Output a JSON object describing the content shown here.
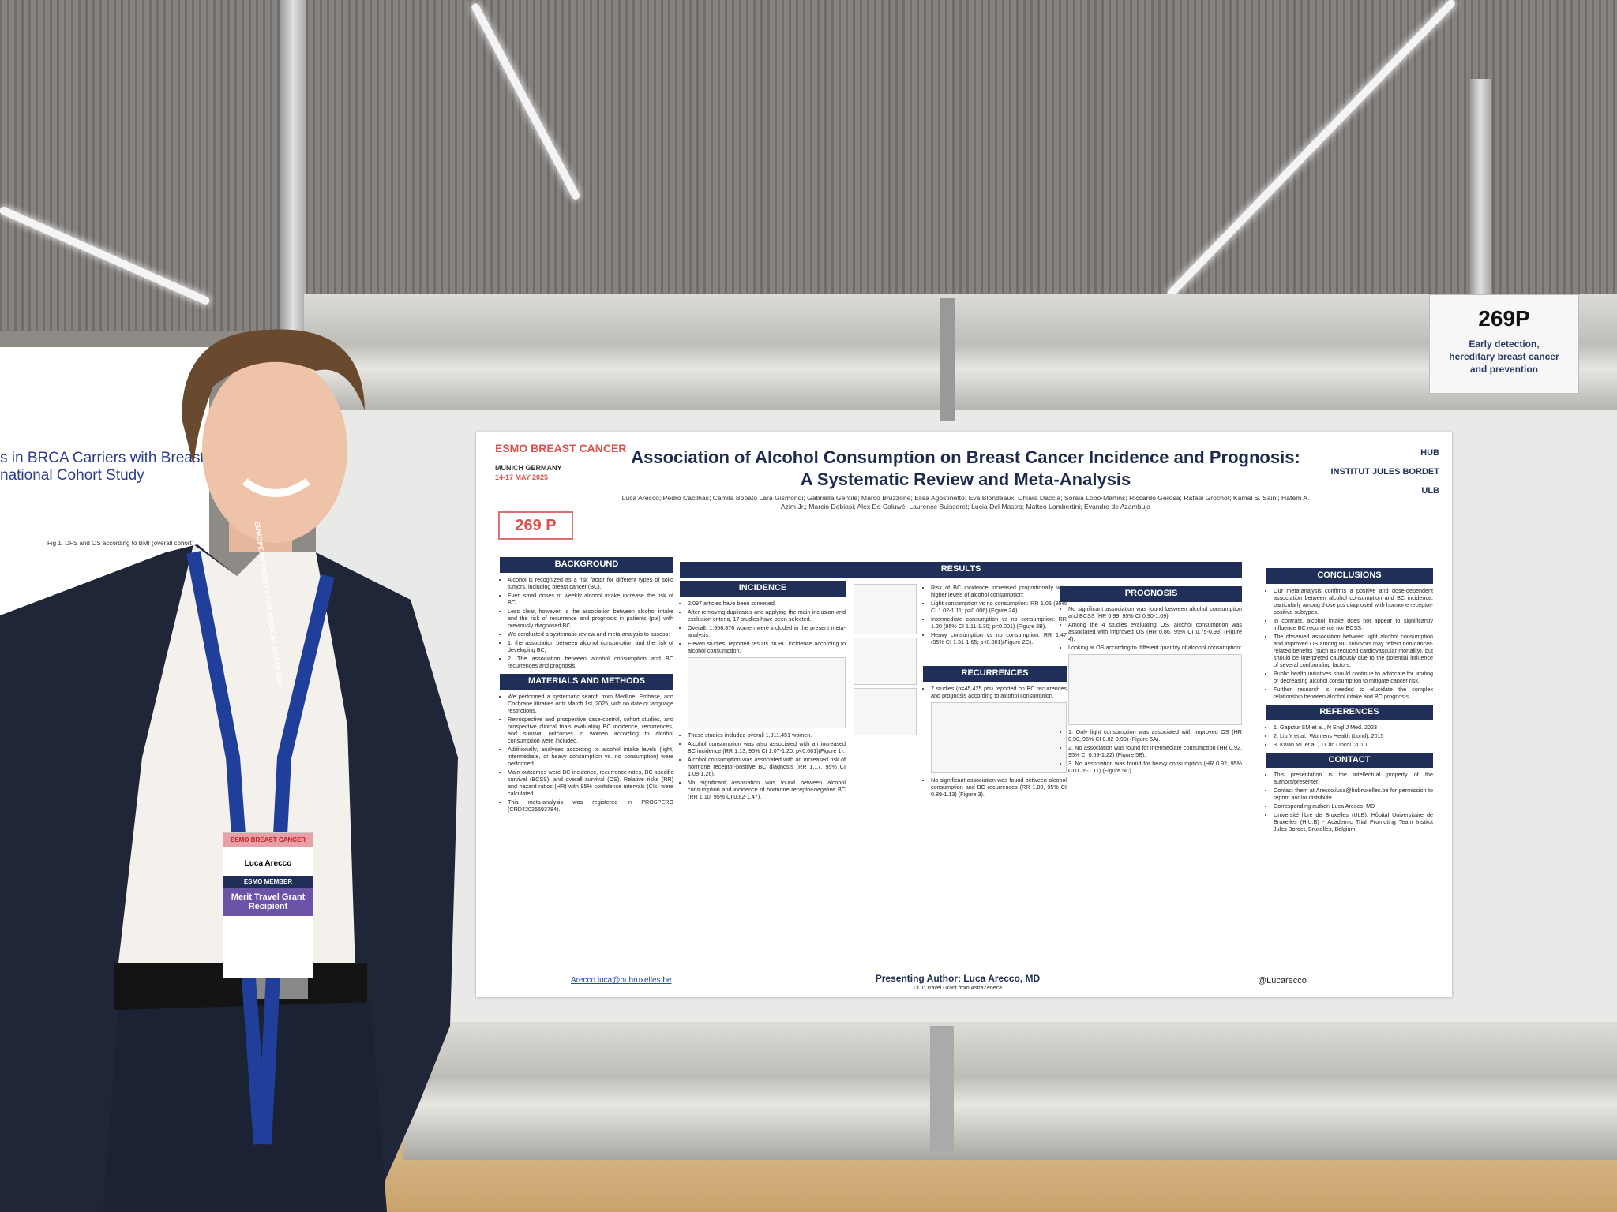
{
  "sign": {
    "code": "269P",
    "topic": "Early detection, hereditary breast cancer and prevention"
  },
  "left_poster": {
    "title": "s in BRCA Carriers with Breast Cancer",
    "subtitle": "national Cohort Study",
    "figure": "Fig 1. DFS and OS according to BMI (overall cohort)"
  },
  "badge": {
    "event": "ESMO BREAST CANCER",
    "name": "Luca Arecco",
    "member": "ESMO MEMBER",
    "grant": "Merit Travel Grant Recipient"
  },
  "lanyard": "EUROPEAN SOCIETY FOR MEDICAL ONCOLOGY",
  "poster": {
    "conference": "ESMO BREAST CANCER",
    "location": "MUNICH GERMANY",
    "dates": "14-17 MAY 2025",
    "number": "269 P",
    "title": "Association of Alcohol Consumption on Breast Cancer Incidence and Prognosis:",
    "subtitle": "A Systematic Review and Meta-Analysis",
    "authors": "Luca Arecco; Pedro Cacilhas; Camila Bobato Lara Gismondi; Gabriella Gentile; Marco Bruzzone; Elisa Agostinetto; Eva Blondeaux; Chiara Daccia; Soraia Lobo-Martins; Riccardo Gerosa; Rafael Grochot; Kamal S. Saini; Hatem A. Azim Jr.; Marcio Debiasi; Alex De Caluwé; Laurence Buisseret; Lucia Del Mastro; Matteo Lambertini; Evandro de Azambuja",
    "logos": [
      "HUB",
      "INSTITUT JULES BORDET",
      "ULB"
    ],
    "background": {
      "heading": "BACKGROUND",
      "items": [
        "Alcohol is recognized as a risk factor for different types of solid tumors, including breast cancer (BC).",
        "Even small doses of weekly alcohol intake increase the risk of BC.",
        "Less clear, however, is the association between alcohol intake and the risk of recurrence and prognosis in patients (pts) with previously diagnosed BC.",
        "We conducted a systematic review and meta-analysis to assess:",
        "1. the association between alcohol consumption and the risk of developing BC;",
        "2. The association between alcohol consumption and BC recurrences and prognosis."
      ]
    },
    "methods": {
      "heading": "MATERIALS AND METHODS",
      "items": [
        "We performed a systematic search from Medline, Embase, and Cochrane libraries until March 1st, 2025, with no date or language restrictions.",
        "Retrospective and prospective case-control, cohort studies, and prospective clinical trials evaluating BC incidence, recurrences, and survival outcomes in women according to alcohol consumption were included.",
        "Additionally, analyses according to alcohol intake levels (light, intermediate, or heavy consumption vs. no consumption) were performed.",
        "Main outcomes were BC incidence, recurrence rates, BC-specific survival (BCSS), and overall survival (OS). Relative risks (RR) and hazard ratios (HR) with 95% confidence intervals (CIs) were calculated.",
        "This meta-analysis was registered in PROSPERO (CRD42025593784)."
      ]
    },
    "results_heading": "RESULTS",
    "incidence": {
      "heading": "INCIDENCE",
      "items": [
        "2,097 articles have been screened.",
        "After removing duplicates and applying the main inclusion and exclusion criteria, 17 studies have been selected.",
        "Overall, 1,956,876 women were included in the present meta-analysis.",
        "Eleven studies, reported results on BC incidence according to alcohol consumption.",
        "These studies included overall 1,911,451 women.",
        "Alcohol consumption was also associated with an increased BC incidence (RR 1.13, 95% CI 1.07-1.20; p<0.001)(Figure 1).",
        "Alcohol consumption was associated with an increased risk of hormone receptor-positive BC diagnosis (RR 1.17, 95% CI 1.08-1.26).",
        "No significant association was found between alcohol consumption and incidence of hormone receptor-negative BC (RR 1.10, 95% CI 0.82-1.47)."
      ]
    },
    "levels": {
      "items": [
        "Risk of BC incidence increased proportionally with higher levels of alcohol consumption:",
        "Light consumption vs no consumption: RR 1.06 (95% CI 1.02-1.11; p=0.006) (Figure 2A).",
        "Intermediate consumption vs no consumption: RR 1.20 (95% CI 1.11-1.30; p<0.001) (Figure 2B).",
        "Heavy consumption vs no consumption: RR 1.47 (95% CI 1.31-1.65; p<0.001)(Figure 2C)."
      ]
    },
    "recurrences": {
      "heading": "RECURRENCES",
      "items": [
        "7 studies (n=45,425 pts) reported on BC recurrences and prognosis according to alcohol consumption.",
        "No significant association was found between alcohol consumption and BC recurrences (RR 1.00, 95% CI 0.89-1.13) (Figure 3)."
      ]
    },
    "prognosis": {
      "heading": "PROGNOSIS",
      "items": [
        "No significant association was found between alcohol consumption and BCSS (HR 0.99, 95% CI 0.90-1.09).",
        "Among the 4 studies evaluating OS, alcohol consumption was associated with improved OS (HR 0.86, 95% CI 0.75-0.99) (Figure 4).",
        "Looking at OS according to different quantity of alcohol consumption:",
        "1. Only light consumption was associated with improved OS (HR 0.90, 95% CI 0.82-0.99) (Figure 5A).",
        "2. No association was found for intermediate consumption (HR 0.92, 95% CI 0.69-1.22) (Figure 5B).",
        "3. No association was found for heavy consumption (HR 0.92, 95% CI 0.76-1.11) (Figure 5C)."
      ]
    },
    "conclusions": {
      "heading": "CONCLUSIONS",
      "items": [
        "Our meta-analysis confirms a positive and dose-dependent association between alcohol consumption and BC incidence, particularly among those pts diagnosed with hormone receptor-positive subtypes.",
        "In contrast, alcohol intake does not appear to significantly influence BC recurrence nor BCSS.",
        "The observed association between light alcohol consumption and improved OS among BC survivors may reflect non-cancer-related benefits (such as reduced cardiovascular mortality), but should be interpreted cautiously due to the potential influence of several confounding factors.",
        "Public health initiatives should continue to advocate for limiting or decreasing alcohol consumption to mitigate cancer risk.",
        "Further research is needed to elucidate the complex relationship between alcohol intake and BC prognosis."
      ]
    },
    "references": {
      "heading": "REFERENCES",
      "items": [
        "1. Gapstur SM et al., N Engl J Med. 2023",
        "2. Liu Y et al., Womens Health (Lond). 2015",
        "3. Kwan ML et al., J Clin Oncol. 2010"
      ]
    },
    "contact": {
      "heading": "CONTACT",
      "items": [
        "This presentation is the intellectual property of the authors/presenter.",
        "Contact them at Arecco.luca@hubruxelles.be for permission to reprint and/or distribute.",
        "Corresponding author: Luca Arecco, MD",
        "Université libre de Bruxelles (ULB), Hôpital Universitaire de Bruxelles (H.U.B) - Academic Trial Promoting Team Institut Jules Bordet, Bruxelles, Belgium."
      ]
    },
    "presenting": "Presenting Author: Luca Arecco, MD",
    "disclosure": "DOI: Travel Grant from AstraZeneca",
    "email": "Arecco.luca@hubruxelles.be",
    "social": "@Lucarecco"
  }
}
